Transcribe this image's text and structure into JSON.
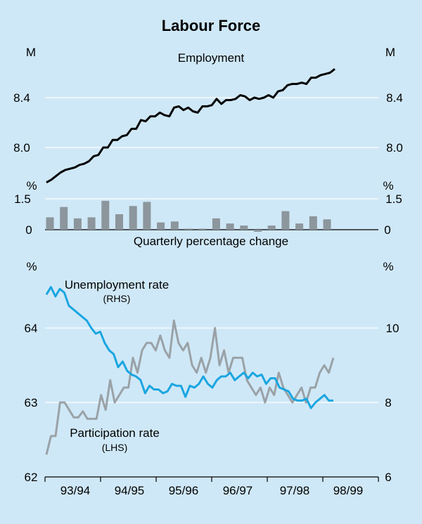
{
  "title": "Labour Force",
  "x_ticks": [
    "93/94",
    "94/95",
    "95/96",
    "96/97",
    "97/98",
    "98/99"
  ],
  "colors": {
    "background": "#cfe8f7",
    "employment": "#000000",
    "bars": "#8c969c",
    "unemployment": "#1aa6e0",
    "participation": "#9aa2a7",
    "grid": "#ffffff"
  },
  "chart_data": [
    {
      "type": "line",
      "title": "Employment",
      "unit_left": "M",
      "unit_right": "M",
      "ylim": [
        7.6,
        8.9
      ],
      "yticks": [
        "8.0",
        "8.4"
      ],
      "series": [
        {
          "name": "Employment",
          "values": [
            7.72,
            7.74,
            7.77,
            7.8,
            7.82,
            7.83,
            7.84,
            7.86,
            7.87,
            7.89,
            7.93,
            7.94,
            8.0,
            8.0,
            8.06,
            8.06,
            8.09,
            8.1,
            8.15,
            8.15,
            8.22,
            8.21,
            8.25,
            8.25,
            8.28,
            8.26,
            8.25,
            8.32,
            8.33,
            8.3,
            8.32,
            8.29,
            8.28,
            8.33,
            8.33,
            8.34,
            8.39,
            8.35,
            8.38,
            8.38,
            8.39,
            8.42,
            8.41,
            8.38,
            8.4,
            8.39,
            8.4,
            8.42,
            8.4,
            8.45,
            8.46,
            8.5,
            8.51,
            8.51,
            8.52,
            8.51,
            8.56,
            8.56,
            8.58,
            8.59,
            8.6,
            8.63
          ]
        }
      ]
    },
    {
      "type": "bar",
      "title": "Quarterly percentage change",
      "unit_left": "%",
      "unit_right": "%",
      "ylim": [
        -0.3,
        1.5
      ],
      "yticks": [
        "0",
        "1.5"
      ],
      "values": [
        0.6,
        1.1,
        0.55,
        0.6,
        1.4,
        0.75,
        1.15,
        1.35,
        0.35,
        0.4,
        0.05,
        0.05,
        0.55,
        0.3,
        0.2,
        -0.1,
        0.2,
        0.9,
        0.3,
        0.65,
        0.5
      ]
    },
    {
      "type": "line",
      "unit_left": "%",
      "unit_right": "%",
      "left_axis": {
        "ylim": [
          62,
          65
        ],
        "yticks": [
          "62",
          "63",
          "64"
        ]
      },
      "right_axis": {
        "ylim": [
          6,
          12
        ],
        "yticks": [
          "6",
          "8",
          "10"
        ]
      },
      "series": [
        {
          "name": "Unemployment rate",
          "sublabel": "(RHS)",
          "axis": "right",
          "values": [
            10.9,
            11.1,
            10.85,
            11.05,
            10.95,
            10.6,
            10.5,
            10.4,
            10.3,
            10.2,
            10.0,
            9.85,
            9.9,
            9.6,
            9.4,
            9.3,
            8.95,
            9.1,
            8.85,
            8.75,
            8.7,
            8.6,
            8.25,
            8.45,
            8.35,
            8.35,
            8.25,
            8.3,
            8.5,
            8.45,
            8.45,
            8.15,
            8.45,
            8.4,
            8.5,
            8.7,
            8.5,
            8.4,
            8.6,
            8.7,
            8.7,
            8.8,
            8.6,
            8.7,
            8.8,
            8.65,
            8.8,
            8.7,
            8.75,
            8.5,
            8.65,
            8.65,
            8.4,
            8.35,
            8.3,
            8.1,
            8.05,
            8.05,
            8.1,
            7.85,
            8.0,
            8.1,
            8.2,
            8.05,
            8.05
          ]
        },
        {
          "name": "Participation rate",
          "sublabel": "(LHS)",
          "axis": "left",
          "values": [
            62.3,
            62.55,
            62.55,
            63.0,
            63.0,
            62.9,
            62.8,
            62.8,
            62.88,
            62.78,
            62.78,
            62.78,
            63.1,
            62.9,
            63.3,
            63.0,
            63.1,
            63.2,
            63.2,
            63.6,
            63.4,
            63.7,
            63.8,
            63.8,
            63.7,
            63.9,
            63.7,
            63.6,
            64.1,
            63.8,
            63.7,
            63.8,
            63.5,
            63.4,
            63.6,
            63.4,
            63.6,
            64.0,
            63.5,
            63.7,
            63.4,
            63.6,
            63.6,
            63.6,
            63.3,
            63.2,
            63.1,
            63.2,
            63.0,
            63.2,
            63.1,
            63.4,
            63.2,
            63.1,
            63.0,
            63.1,
            63.2,
            63.0,
            63.2,
            63.2,
            63.4,
            63.5,
            63.4,
            63.6
          ]
        }
      ]
    }
  ]
}
